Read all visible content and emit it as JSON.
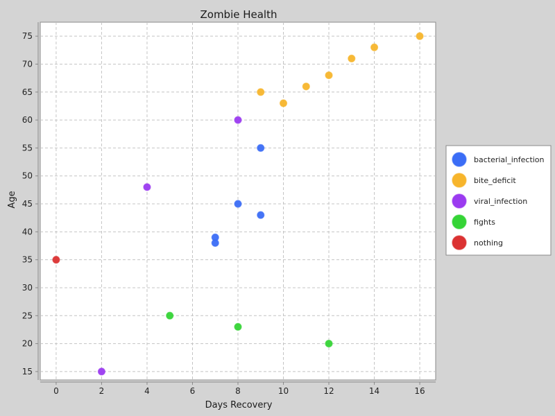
{
  "chart_data": {
    "type": "scatter",
    "title": "Zombie Health",
    "xlabel": "Days Recovery",
    "ylabel": "Age",
    "xlim": [
      -0.7,
      16.7
    ],
    "ylim": [
      13.5,
      77.5
    ],
    "xticks": [
      0,
      2,
      4,
      6,
      8,
      10,
      12,
      14,
      16
    ],
    "yticks": [
      15,
      20,
      25,
      30,
      35,
      40,
      45,
      50,
      55,
      60,
      65,
      70,
      75
    ],
    "grid": true,
    "legend_position": "right",
    "series": [
      {
        "name": "bacterial_infection",
        "color": "#3b6df6",
        "points": [
          [
            9,
            55
          ],
          [
            8,
            45
          ],
          [
            9,
            43
          ],
          [
            7,
            39
          ],
          [
            7,
            38
          ]
        ]
      },
      {
        "name": "bite_deficit",
        "color": "#f7b52c",
        "points": [
          [
            16,
            75
          ],
          [
            14,
            73
          ],
          [
            13,
            71
          ],
          [
            12,
            68
          ],
          [
            11,
            66
          ],
          [
            9,
            65
          ],
          [
            10,
            63
          ]
        ]
      },
      {
        "name": "viral_infection",
        "color": "#9b3bf0",
        "points": [
          [
            8,
            60
          ],
          [
            4,
            48
          ],
          [
            2,
            15
          ]
        ]
      },
      {
        "name": "fights",
        "color": "#35d436",
        "points": [
          [
            5,
            25
          ],
          [
            8,
            23
          ],
          [
            12,
            20
          ]
        ]
      },
      {
        "name": "nothing",
        "color": "#db3232",
        "points": [
          [
            0,
            35
          ]
        ]
      }
    ]
  }
}
